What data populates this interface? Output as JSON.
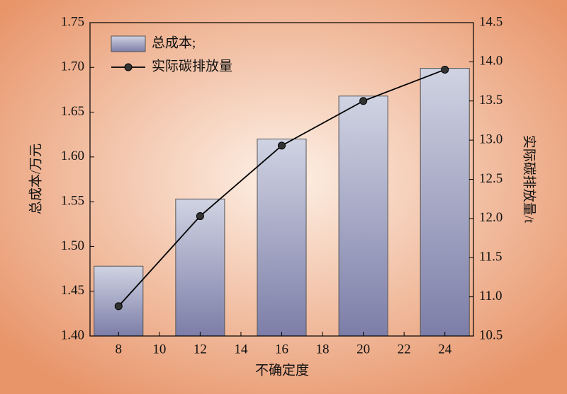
{
  "chart_data": {
    "type": "bar_line",
    "x_label": "不确定度",
    "y_label": "总成本/万元",
    "y2_label": "实际碳排放量/t",
    "x": [
      8,
      12,
      16,
      20,
      24
    ],
    "xlim": [
      6.6,
      25.4
    ],
    "xticks": [
      8,
      10,
      12,
      14,
      16,
      18,
      20,
      22,
      24
    ],
    "ylim": [
      1.4,
      1.75
    ],
    "yticks": [
      {
        "value": 1.4,
        "label": "1.40"
      },
      1.45,
      {
        "value": 1.5,
        "label": "1.50"
      },
      1.55,
      {
        "value": 1.6,
        "label": "1.60"
      },
      1.65,
      {
        "value": 1.7,
        "label": "1.70"
      },
      1.75
    ],
    "y2lim": [
      10.5,
      14.5
    ],
    "y2ticks": [
      10.5,
      {
        "value": 11,
        "label": "11.0"
      },
      11.5,
      {
        "value": 12,
        "label": "12.0"
      },
      12.5,
      {
        "value": 13,
        "label": "13.0"
      },
      13.5,
      {
        "value": 14,
        "label": "14.0"
      },
      14.5
    ],
    "series": [
      {
        "name": "总成本;",
        "type": "bar",
        "color": "#8e8fb8",
        "values": [
          1.478,
          1.553,
          1.62,
          1.668,
          1.699
        ]
      },
      {
        "name": "实际碳排放量",
        "type": "line",
        "axis": "y2",
        "color": "#000000",
        "values": [
          10.88,
          12.03,
          12.93,
          13.5,
          13.9
        ]
      }
    ]
  }
}
